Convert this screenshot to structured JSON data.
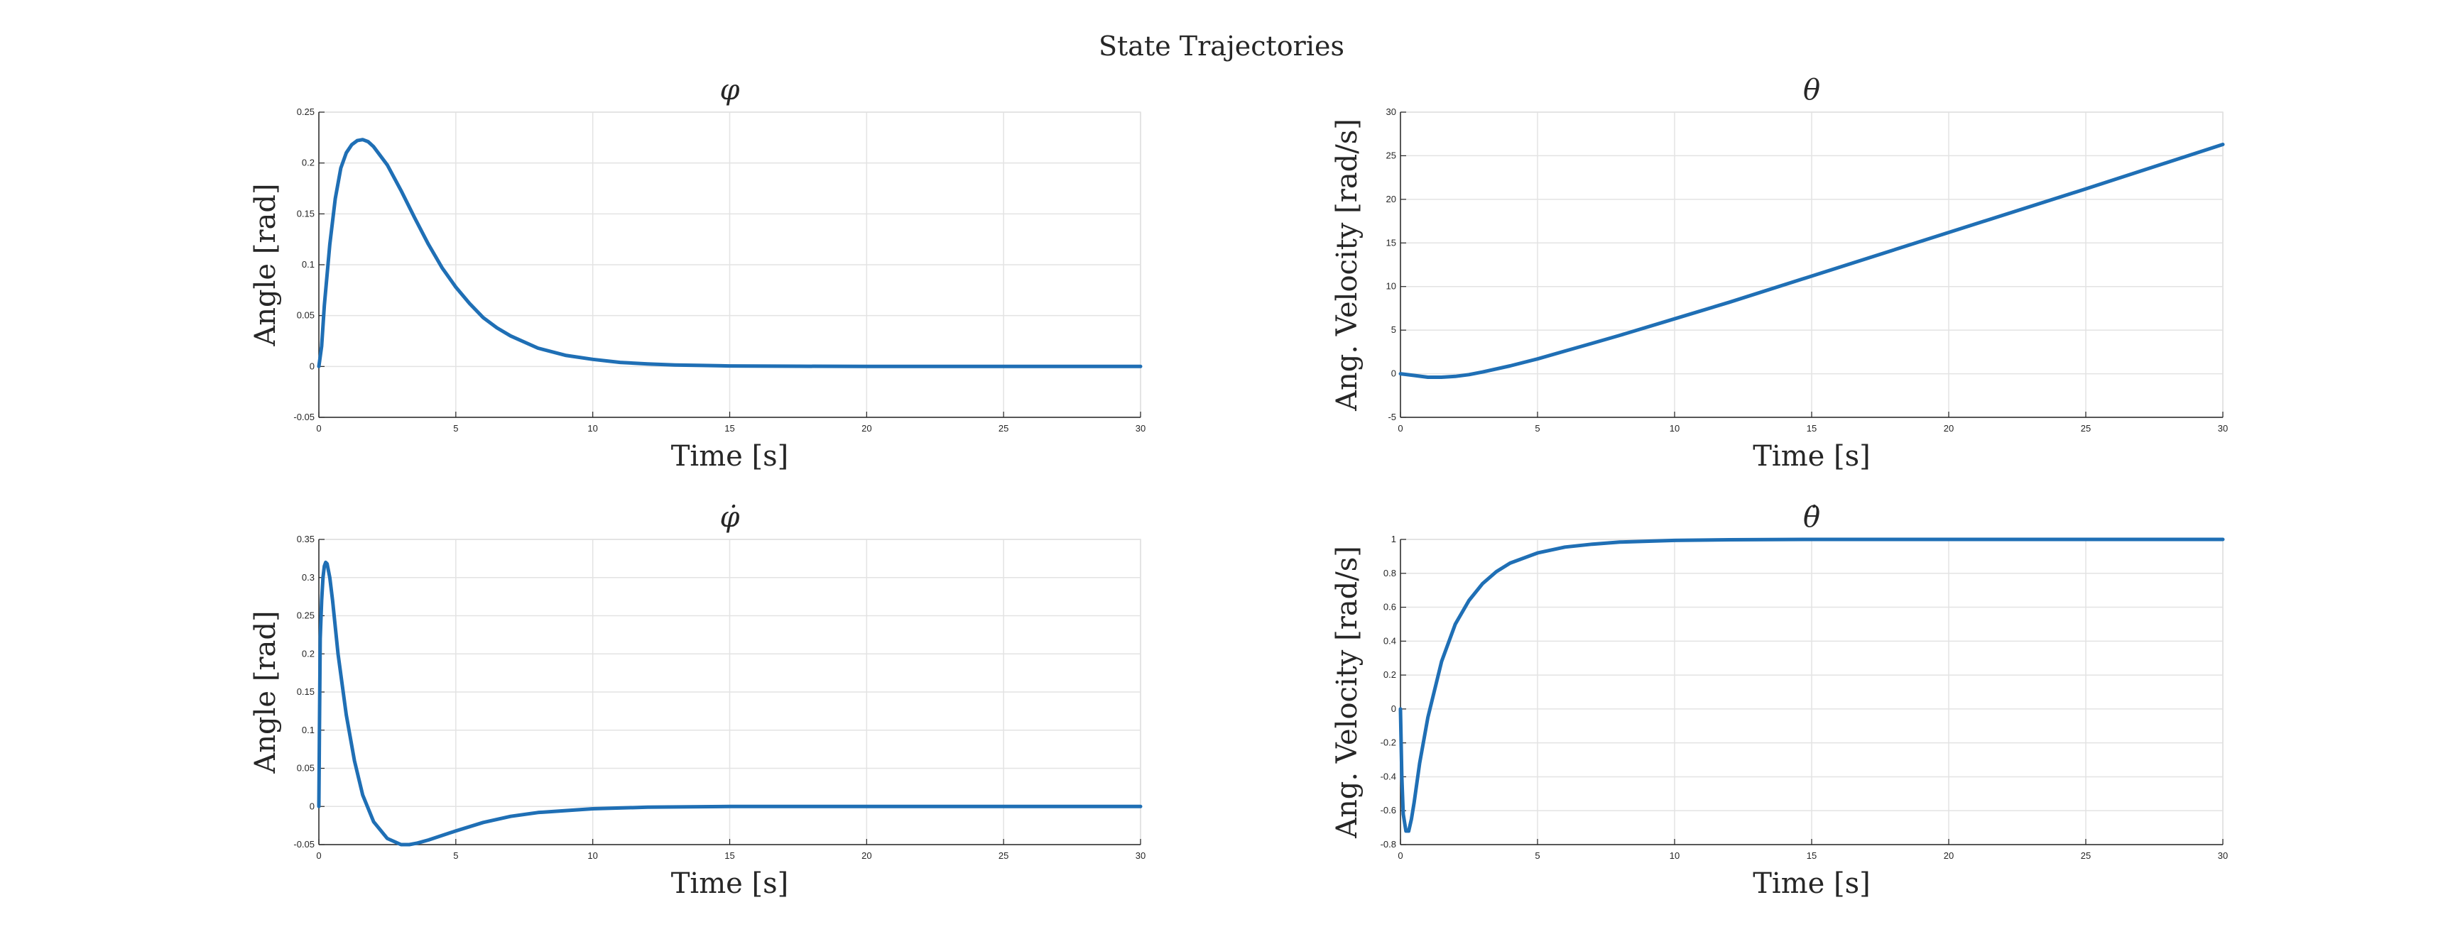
{
  "figure": {
    "title": "State Trajectories"
  },
  "colors": {
    "series": "#1f6fb5",
    "grid": "#e3e3e3",
    "axis": "#262626"
  },
  "chart_data": [
    {
      "type": "line",
      "title": "φ",
      "xlabel": "Time [s]",
      "ylabel": "Angle [rad]",
      "xlim": [
        0,
        30
      ],
      "ylim": [
        -0.05,
        0.25
      ],
      "xticks": [
        0,
        5,
        10,
        15,
        20,
        25,
        30
      ],
      "yticks": [
        -0.05,
        0,
        0.05,
        0.1,
        0.15,
        0.2,
        0.25
      ],
      "xtick_labels": [
        "0",
        "5",
        "10",
        "15",
        "20",
        "25",
        "30"
      ],
      "ytick_labels": [
        "-0.05",
        "0",
        "0.05",
        "0.1",
        "0.15",
        "0.2",
        "0.25"
      ],
      "grid": true,
      "series": [
        {
          "x": [
            0,
            0.1,
            0.2,
            0.4,
            0.6,
            0.8,
            1.0,
            1.2,
            1.4,
            1.6,
            1.8,
            2.0,
            2.5,
            3.0,
            3.5,
            4.0,
            4.5,
            5.0,
            5.5,
            6.0,
            6.5,
            7.0,
            8.0,
            9.0,
            10.0,
            11.0,
            12.0,
            13.0,
            14.0,
            15.0,
            17.5,
            20.0,
            25.0,
            30.0
          ],
          "y": [
            0.0,
            0.02,
            0.06,
            0.12,
            0.165,
            0.195,
            0.21,
            0.218,
            0.222,
            0.223,
            0.221,
            0.216,
            0.198,
            0.173,
            0.146,
            0.12,
            0.097,
            0.078,
            0.062,
            0.048,
            0.038,
            0.03,
            0.018,
            0.011,
            0.007,
            0.004,
            0.0025,
            0.0015,
            0.001,
            0.0005,
            0.0002,
            0.0,
            0.0,
            0.0
          ]
        }
      ]
    },
    {
      "type": "line",
      "title": "θ",
      "xlabel": "Time [s]",
      "ylabel": "Ang. Velocity [rad/s]",
      "xlim": [
        0,
        30
      ],
      "ylim": [
        -5,
        30
      ],
      "xticks": [
        0,
        5,
        10,
        15,
        20,
        25,
        30
      ],
      "yticks": [
        -5,
        0,
        5,
        10,
        15,
        20,
        25,
        30
      ],
      "xtick_labels": [
        "0",
        "5",
        "10",
        "15",
        "20",
        "25",
        "30"
      ],
      "ytick_labels": [
        "-5",
        "0",
        "5",
        "10",
        "15",
        "20",
        "25",
        "30"
      ],
      "grid": true,
      "series": [
        {
          "x": [
            0,
            0.5,
            1.0,
            1.5,
            2.0,
            2.5,
            3.0,
            4.0,
            5.0,
            6.0,
            7.0,
            8.0,
            10.0,
            12.0,
            15.0,
            20.0,
            25.0,
            30.0
          ],
          "y": [
            0.0,
            -0.2,
            -0.4,
            -0.4,
            -0.3,
            -0.1,
            0.2,
            0.9,
            1.7,
            2.6,
            3.5,
            4.4,
            6.3,
            8.2,
            11.2,
            16.2,
            21.2,
            26.3
          ]
        }
      ]
    },
    {
      "type": "line",
      "title": "φ̇",
      "xlabel": "Time [s]",
      "ylabel": "Angle [rad]",
      "xlim": [
        0,
        30
      ],
      "ylim": [
        -0.05,
        0.35
      ],
      "xticks": [
        0,
        5,
        10,
        15,
        20,
        25,
        30
      ],
      "yticks": [
        -0.05,
        0,
        0.05,
        0.1,
        0.15,
        0.2,
        0.25,
        0.3,
        0.35
      ],
      "xtick_labels": [
        "0",
        "5",
        "10",
        "15",
        "20",
        "25",
        "30"
      ],
      "ytick_labels": [
        "-0.05",
        "0",
        "0.05",
        "0.1",
        "0.15",
        "0.2",
        "0.25",
        "0.3",
        "0.35"
      ],
      "grid": true,
      "series": [
        {
          "x": [
            0,
            0.02,
            0.05,
            0.1,
            0.15,
            0.2,
            0.25,
            0.3,
            0.4,
            0.5,
            0.7,
            1.0,
            1.3,
            1.6,
            2.0,
            2.5,
            3.0,
            3.3,
            3.6,
            4.0,
            5.0,
            6.0,
            7.0,
            8.0,
            10.0,
            12.0,
            15.0,
            20.0,
            25.0,
            30.0
          ],
          "y": [
            0.0,
            0.1,
            0.22,
            0.27,
            0.3,
            0.315,
            0.32,
            0.318,
            0.3,
            0.27,
            0.2,
            0.12,
            0.06,
            0.015,
            -0.02,
            -0.042,
            -0.05,
            -0.05,
            -0.048,
            -0.044,
            -0.032,
            -0.021,
            -0.013,
            -0.008,
            -0.003,
            -0.001,
            0.0,
            0.0,
            0.0,
            0.0
          ]
        }
      ]
    },
    {
      "type": "line",
      "title": "θ̇",
      "xlabel": "Time [s]",
      "ylabel": "Ang. Velocity [rad/s]",
      "xlim": [
        0,
        30
      ],
      "ylim": [
        -0.8,
        1
      ],
      "xticks": [
        0,
        5,
        10,
        15,
        20,
        25,
        30
      ],
      "yticks": [
        -0.8,
        -0.6,
        -0.4,
        -0.2,
        0,
        0.2,
        0.4,
        0.6,
        0.8,
        1
      ],
      "xtick_labels": [
        "0",
        "5",
        "10",
        "15",
        "20",
        "25",
        "30"
      ],
      "ytick_labels": [
        "-0.8",
        "-0.6",
        "-0.4",
        "-0.2",
        "0",
        "0.2",
        "0.4",
        "0.6",
        "0.8",
        "1"
      ],
      "grid": true,
      "series": [
        {
          "x": [
            0,
            0.05,
            0.1,
            0.2,
            0.3,
            0.4,
            0.5,
            0.7,
            1.0,
            1.5,
            2.0,
            2.5,
            3.0,
            3.5,
            4.0,
            5.0,
            6.0,
            7.0,
            8.0,
            10.0,
            12.0,
            15.0,
            20.0,
            30.0
          ],
          "y": [
            0.0,
            -0.4,
            -0.62,
            -0.72,
            -0.72,
            -0.65,
            -0.55,
            -0.32,
            -0.05,
            0.28,
            0.5,
            0.64,
            0.74,
            0.81,
            0.86,
            0.92,
            0.955,
            0.972,
            0.984,
            0.994,
            0.998,
            1.0,
            1.0,
            1.0
          ]
        }
      ]
    }
  ]
}
